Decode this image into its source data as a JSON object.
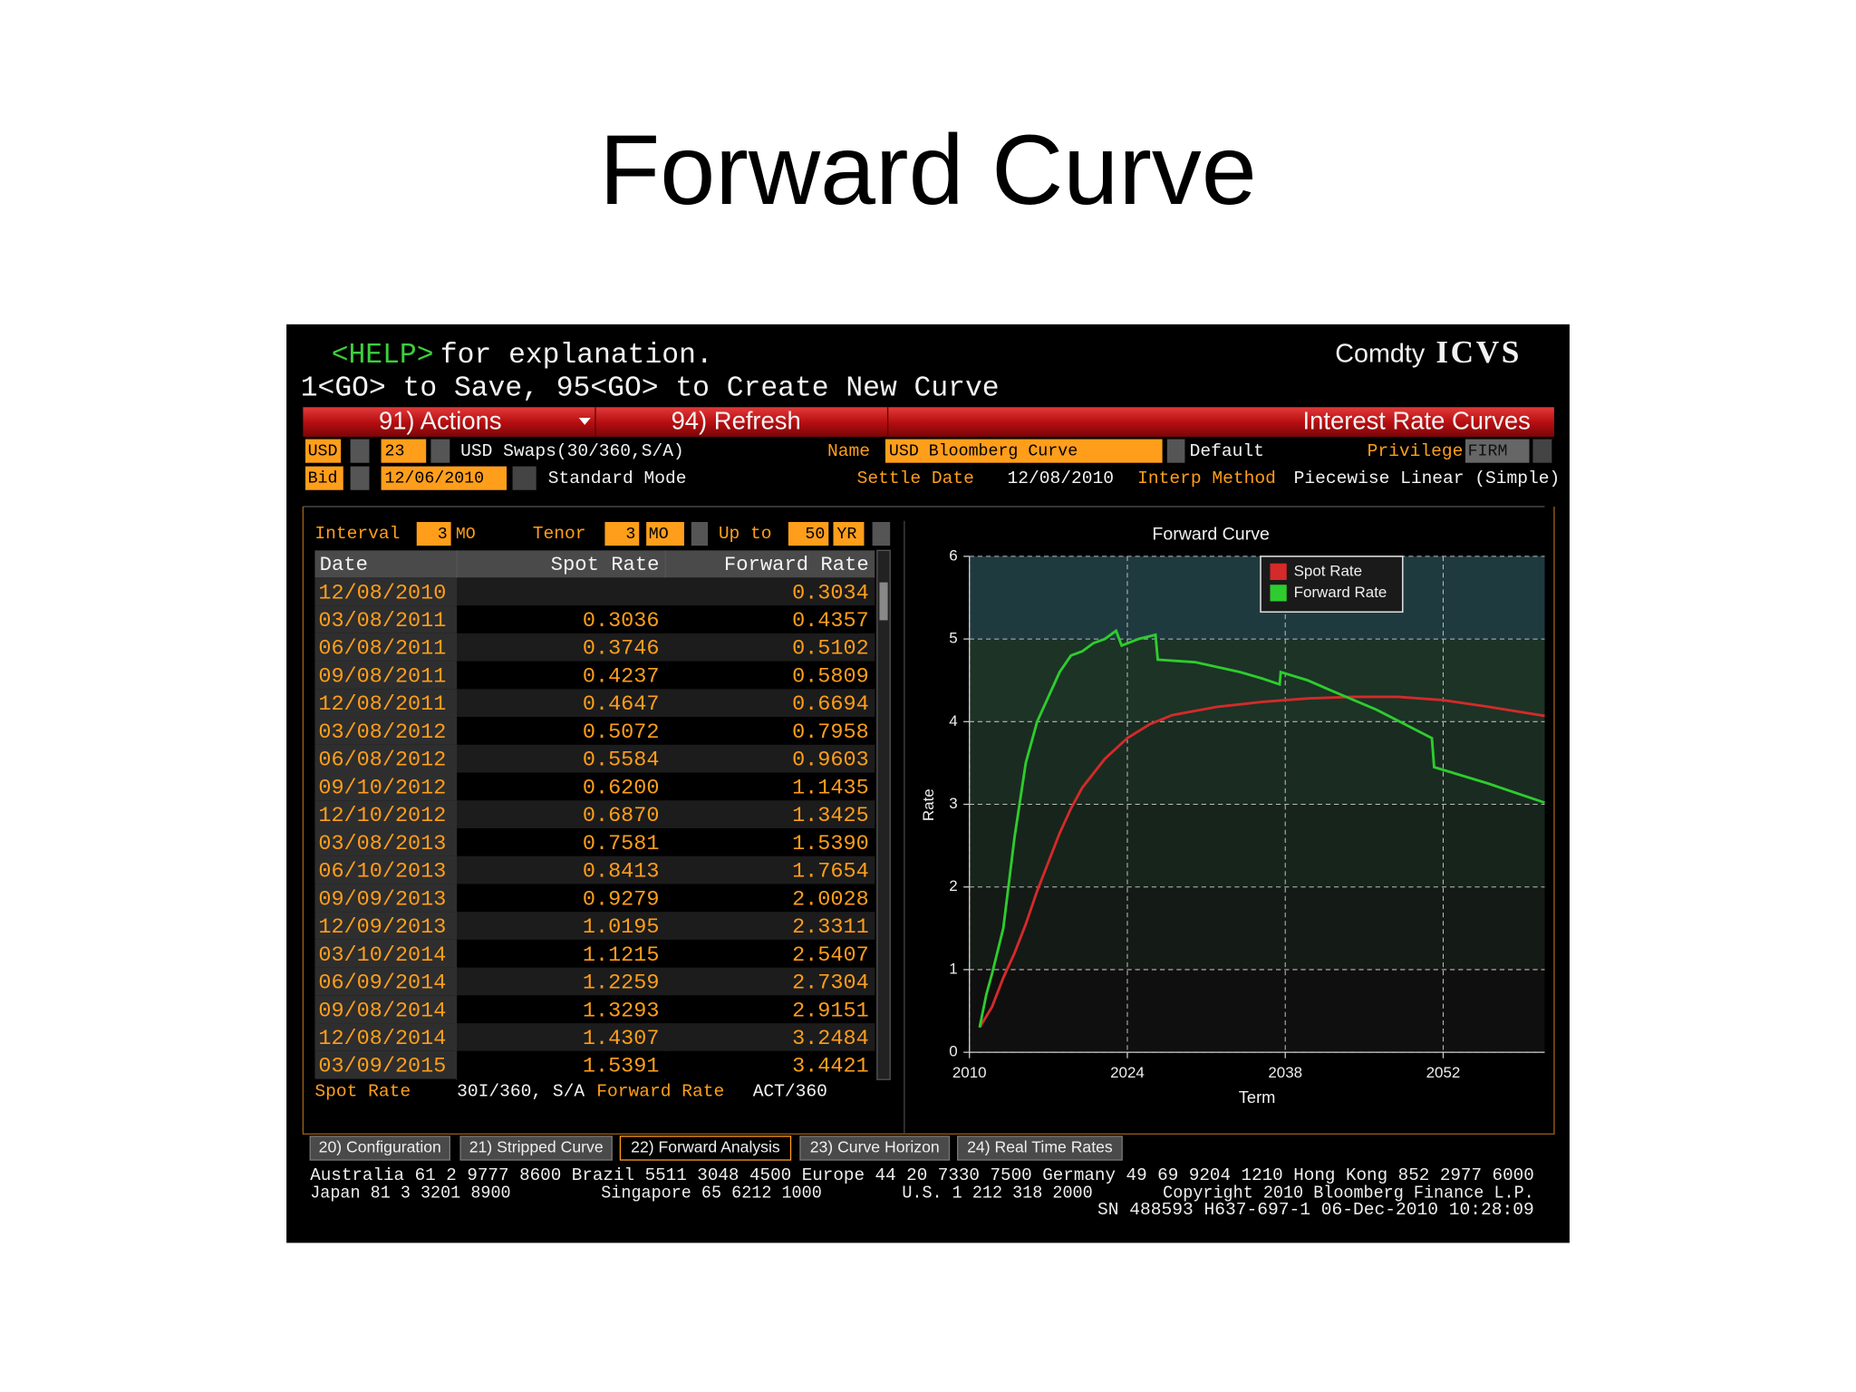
{
  "slide_title": "Forward Curve",
  "header": {
    "help_key": "<HELP>",
    "help_text": "for explanation.",
    "line2": "1<GO> to Save, 95<GO> to Create New Curve",
    "brand": "Comdty",
    "function": "ICVS"
  },
  "toolbar": {
    "actions": "91) Actions",
    "refresh": "94) Refresh",
    "title": "Interest Rate Curves"
  },
  "fields": {
    "currency": "USD",
    "curve_number": "23",
    "curve_desc": "USD Swaps(30/360,S/A)",
    "name_label": "Name",
    "name": "USD Bloomberg Curve",
    "default": "Default",
    "privilege_label": "Privilege",
    "privilege": "FIRM",
    "side": "Bid",
    "date": "12/06/2010",
    "mode": "Standard Mode",
    "settle_label": "Settle Date",
    "settle": "12/08/2010",
    "interp_label": "Interp Method",
    "interp": "Piecewise Linear (Simple)"
  },
  "controls": {
    "interval_label": "Interval",
    "interval": "3",
    "interval_unit": "MO",
    "tenor_label": "Tenor",
    "tenor": "3",
    "tenor_unit": "MO",
    "upto_label": "Up to",
    "upto": "50",
    "upto_unit": "YR"
  },
  "table": {
    "columns": [
      "Date",
      "Spot Rate",
      "Forward Rate"
    ],
    "rows": [
      [
        "12/08/2010",
        null,
        "0.3034"
      ],
      [
        "03/08/2011",
        "0.3036",
        "0.4357"
      ],
      [
        "06/08/2011",
        "0.3746",
        "0.5102"
      ],
      [
        "09/08/2011",
        "0.4237",
        "0.5809"
      ],
      [
        "12/08/2011",
        "0.4647",
        "0.6694"
      ],
      [
        "03/08/2012",
        "0.5072",
        "0.7958"
      ],
      [
        "06/08/2012",
        "0.5584",
        "0.9603"
      ],
      [
        "09/10/2012",
        "0.6200",
        "1.1435"
      ],
      [
        "12/10/2012",
        "0.6870",
        "1.3425"
      ],
      [
        "03/08/2013",
        "0.7581",
        "1.5390"
      ],
      [
        "06/10/2013",
        "0.8413",
        "1.7654"
      ],
      [
        "09/09/2013",
        "0.9279",
        "2.0028"
      ],
      [
        "12/09/2013",
        "1.0195",
        "2.3311"
      ],
      [
        "03/10/2014",
        "1.1215",
        "2.5407"
      ],
      [
        "06/09/2014",
        "1.2259",
        "2.7304"
      ],
      [
        "09/08/2014",
        "1.3293",
        "2.9151"
      ],
      [
        "12/08/2014",
        "1.4307",
        "3.2484"
      ],
      [
        "03/09/2015",
        "1.5391",
        "3.4421"
      ]
    ]
  },
  "notes": {
    "spot_label": "Spot Rate",
    "spot_conv": "30I/360, S/A",
    "fwd_label": "Forward Rate",
    "fwd_conv": "ACT/360"
  },
  "chart_data": {
    "type": "line",
    "title": "Forward Curve",
    "x_label": "Term",
    "y_label": "Rate",
    "xlim": [
      2010,
      2061
    ],
    "xticks": [
      2010,
      2024,
      2038,
      2052
    ],
    "ylim": [
      0,
      6
    ],
    "yticks": [
      0,
      1,
      2,
      3,
      4,
      5,
      6
    ],
    "grid": true,
    "legend": "top-right",
    "series": [
      {
        "name": "Spot Rate",
        "color": "#d42a2a",
        "x": [
          2010.9,
          2012,
          2013,
          2014,
          2015,
          2016,
          2017,
          2018,
          2019,
          2020,
          2022,
          2024,
          2026,
          2028,
          2032,
          2036,
          2040,
          2044,
          2048,
          2052,
          2056,
          2061
        ],
        "values": [
          0.3,
          0.55,
          0.9,
          1.2,
          1.55,
          1.95,
          2.3,
          2.65,
          2.95,
          3.2,
          3.55,
          3.8,
          3.97,
          4.08,
          4.18,
          4.24,
          4.28,
          4.3,
          4.3,
          4.26,
          4.18,
          4.07
        ]
      },
      {
        "name": "Forward Rate",
        "color": "#2ecc2e",
        "x": [
          2010.9,
          2011.5,
          2012,
          2013,
          2014,
          2015,
          2016,
          2017,
          2018,
          2019,
          2020,
          2021,
          2022,
          2023,
          2023.5,
          2025,
          2026.5,
          2026.7,
          2030,
          2034,
          2036,
          2037.5,
          2037.6,
          2040,
          2042,
          2046,
          2051,
          2051.2,
          2056,
          2061
        ],
        "values": [
          0.3,
          0.7,
          0.95,
          1.5,
          2.6,
          3.5,
          4.0,
          4.3,
          4.6,
          4.8,
          4.85,
          4.95,
          5.0,
          5.1,
          4.92,
          5.0,
          5.05,
          4.75,
          4.72,
          4.6,
          4.52,
          4.45,
          4.6,
          4.5,
          4.38,
          4.15,
          3.8,
          3.45,
          3.25,
          3.02
        ]
      }
    ]
  },
  "tabs": [
    "20) Configuration",
    "21) Stripped Curve",
    "22) Forward Analysis",
    "23) Curve Horizon",
    "24) Real Time Rates"
  ],
  "footer": [
    "Australia 61 2 9777 8600 Brazil 5511 3048 4500 Europe 44 20 7330 7500 Germany 49 69 9204 1210 Hong Kong 852 2977 6000",
    "Japan 81 3 3201 8900         Singapore 65 6212 1000        U.S. 1 212 318 2000       Copyright 2010 Bloomberg Finance L.P.",
    "SN 488593 H637-697-1 06-Dec-2010 10:28:09"
  ]
}
